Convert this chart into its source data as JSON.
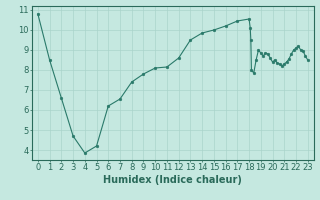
{
  "x_values": [
    0,
    1,
    2,
    3,
    4,
    5,
    6,
    7,
    8,
    9,
    10,
    11,
    12,
    13,
    14,
    15,
    16,
    17,
    18,
    18.1,
    18.15,
    18.2,
    18.4,
    18.6,
    18.8,
    19.0,
    19.2,
    19.4,
    19.6,
    19.8,
    20,
    20.2,
    20.4,
    20.6,
    20.8,
    21,
    21.2,
    21.4,
    21.6,
    21.8,
    22,
    22.2,
    22.4,
    22.6,
    22.8,
    23
  ],
  "y_values": [
    10.8,
    8.5,
    6.6,
    4.7,
    3.85,
    4.2,
    6.2,
    6.55,
    7.4,
    7.8,
    8.1,
    8.15,
    8.6,
    9.5,
    9.85,
    10.0,
    10.2,
    10.45,
    10.55,
    10.1,
    9.5,
    8.0,
    7.85,
    8.5,
    9.0,
    8.85,
    8.7,
    8.85,
    8.8,
    8.6,
    8.4,
    8.5,
    8.35,
    8.3,
    8.2,
    8.3,
    8.4,
    8.55,
    8.8,
    9.0,
    9.1,
    9.2,
    9.0,
    8.95,
    8.7,
    8.5
  ],
  "line_color": "#2a7a6a",
  "marker_color": "#2a7a6a",
  "bg_color": "#c5e8e0",
  "grid_color": "#aad4cb",
  "axis_color": "#2a6a5a",
  "tick_color": "#2a6a5a",
  "xlabel": "Humidex (Indice chaleur)",
  "xlim": [
    -0.5,
    23.5
  ],
  "ylim": [
    3.5,
    11.2
  ],
  "yticks": [
    4,
    5,
    6,
    7,
    8,
    9,
    10,
    11
  ],
  "xticks": [
    0,
    1,
    2,
    3,
    4,
    5,
    6,
    7,
    8,
    9,
    10,
    11,
    12,
    13,
    14,
    15,
    16,
    17,
    18,
    19,
    20,
    21,
    22,
    23
  ],
  "xtick_labels": [
    "0",
    "1",
    "2",
    "3",
    "4",
    "5",
    "6",
    "7",
    "8",
    "9",
    "10",
    "11",
    "12",
    "13",
    "14",
    "15",
    "16",
    "17",
    "18",
    "19",
    "20",
    "21",
    "22",
    "23"
  ],
  "font_size": 6,
  "label_font_size": 7
}
